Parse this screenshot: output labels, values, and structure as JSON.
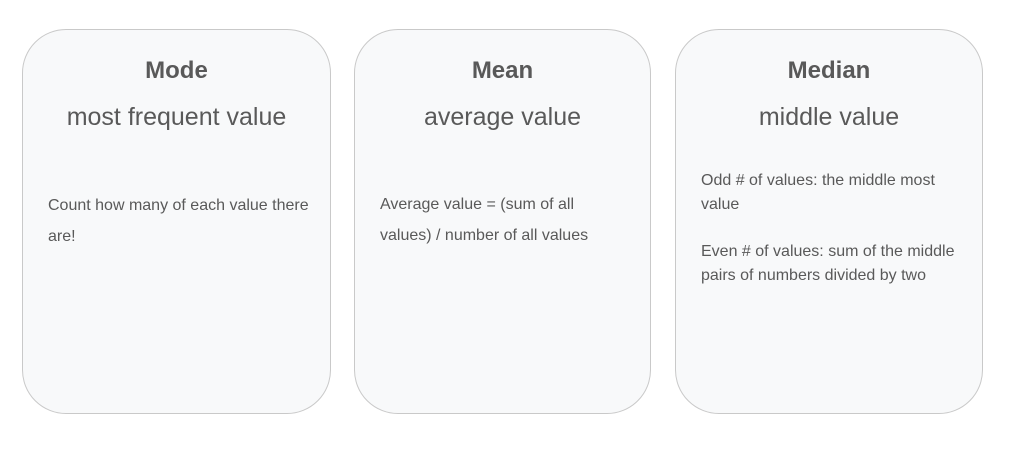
{
  "cards": [
    {
      "title": "Mode",
      "subtitle": "most frequent value",
      "body": [
        "Count how many of each value there are!"
      ]
    },
    {
      "title": "Mean",
      "subtitle": "average value",
      "body": [
        "Average value = (sum of all values) / number of all values"
      ]
    },
    {
      "title": "Median",
      "subtitle": "middle value",
      "body": [
        "Odd # of values: the middle most value",
        "Even # of values: sum of the middle pairs of numbers divided by two"
      ]
    }
  ],
  "colors": {
    "card_background": "#f8f9fa",
    "card_border": "#c9c9c9",
    "text": "#595959"
  }
}
